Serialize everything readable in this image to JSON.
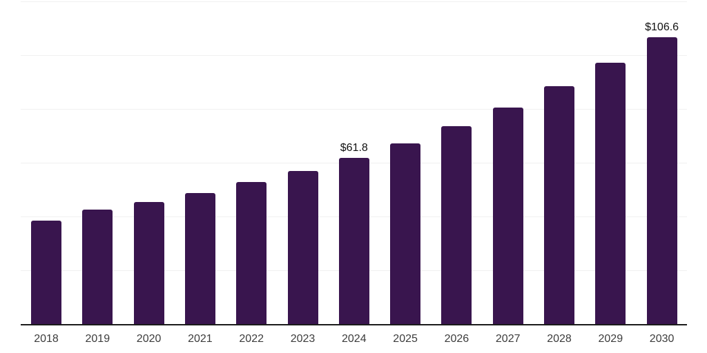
{
  "chart_data": {
    "type": "bar",
    "title": "",
    "xlabel": "",
    "ylabel": "",
    "categories": [
      "2018",
      "2019",
      "2020",
      "2021",
      "2022",
      "2023",
      "2024",
      "2025",
      "2026",
      "2027",
      "2028",
      "2029",
      "2030"
    ],
    "values": [
      38.4,
      42.5,
      45.4,
      48.8,
      52.8,
      57.0,
      61.8,
      67.3,
      73.6,
      80.4,
      88.4,
      97.1,
      106.6
    ],
    "ylim": [
      0,
      120
    ],
    "grid": true,
    "grid_step": 20,
    "legend_position": "none",
    "annotations": [
      {
        "category": "2024",
        "label": "$61.8"
      },
      {
        "category": "2030",
        "label": "$106.6"
      }
    ],
    "colors": {
      "bar": "#39154E",
      "gridline": "#f0f0f0",
      "axis_line": "#1a1a1a",
      "tick_label": "#3c3c3c",
      "annotation_label": "#111111",
      "background": "#ffffff"
    }
  }
}
